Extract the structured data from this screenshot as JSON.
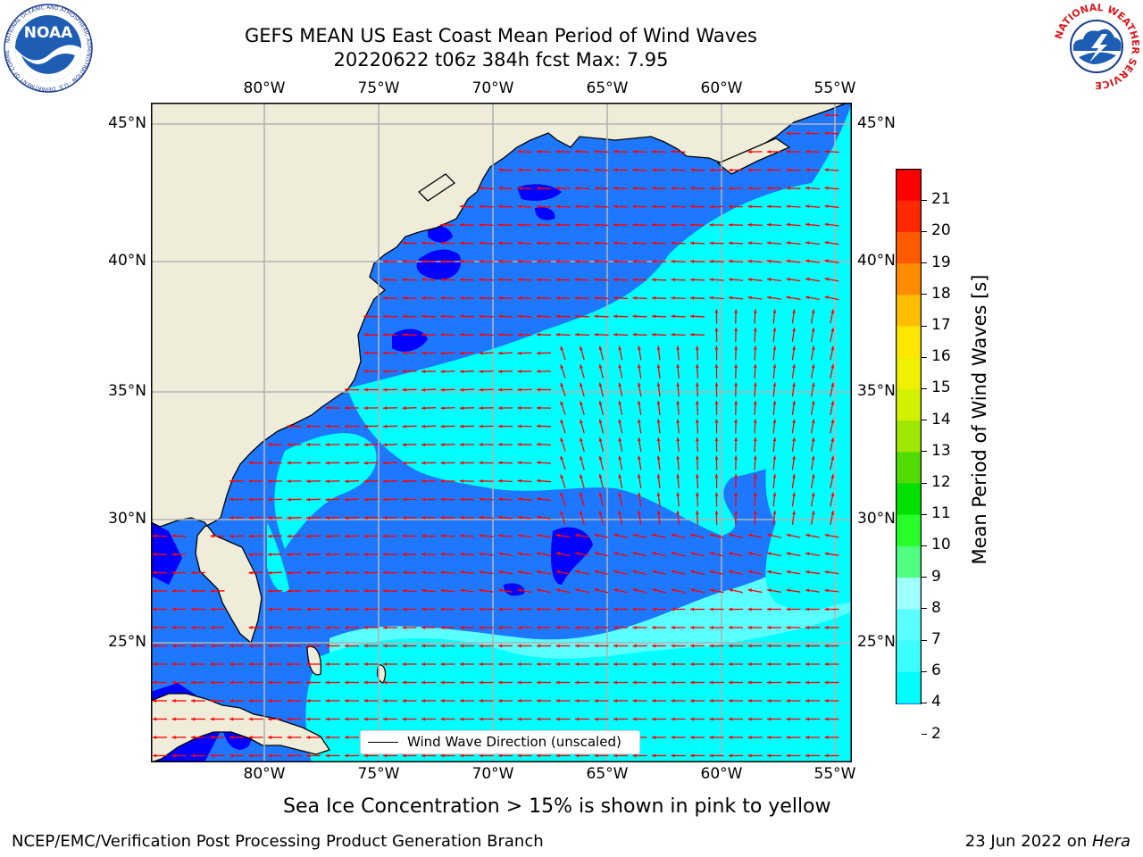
{
  "header": {
    "title_line1": "GEFS MEAN US East Coast Mean Period of Wind Waves",
    "title_line2": "20220622 t06z 384h fcst   Max: 7.95"
  },
  "logos": {
    "left": "NOAA",
    "left_ring": "NATIONAL OCEANIC AND ATMOSPHERIC ADMINISTRATION · U.S. DEPARTMENT OF COMMERCE",
    "right_ring": "NATIONAL WEATHER SERVICE"
  },
  "map": {
    "lon_labels": [
      "80°W",
      "75°W",
      "70°W",
      "65°W",
      "60°W",
      "55°W"
    ],
    "lat_labels": [
      "45°N",
      "40°N",
      "35°N",
      "30°N",
      "25°N"
    ],
    "lon_range": [
      -85,
      -54.2
    ],
    "lat_range": [
      20.5,
      45.8
    ],
    "legend_label": "Wind Wave Direction (unscaled)",
    "colors": {
      "land": "#efedda",
      "coast": "#000000",
      "grid": "#b2b2b2",
      "arrow": "#ff0000",
      "period_under_2": "#0000ff",
      "period_2_4": "#1e78ff",
      "period_4_6": "#00ffff",
      "period_6_8": "#5affff"
    }
  },
  "colorbar": {
    "label": "Mean Period of Wind Waves [s]",
    "ticks": [
      "2",
      "4",
      "6",
      "7",
      "8",
      "9",
      "10",
      "11",
      "12",
      "13",
      "14",
      "15",
      "16",
      "17",
      "18",
      "19",
      "20",
      "21"
    ],
    "colors": [
      "#1e78ff",
      "#00ffff",
      "#3cffff",
      "#5affff",
      "#a0ffff",
      "#50ff80",
      "#28ff28",
      "#00e000",
      "#50dc00",
      "#a0e600",
      "#d2f000",
      "#f0f000",
      "#ffe600",
      "#ffbe00",
      "#ff8c00",
      "#ff5a00",
      "#ff2800",
      "#ff0000"
    ],
    "under_color": "#0000ff"
  },
  "caption": "Sea Ice Concentration > 15% is shown in pink to yellow",
  "footer": {
    "left": "NCEP/EMC/Verification Post Processing Product Generation Branch",
    "right_date": "23 Jun 2022 on ",
    "right_host": "Hera"
  }
}
